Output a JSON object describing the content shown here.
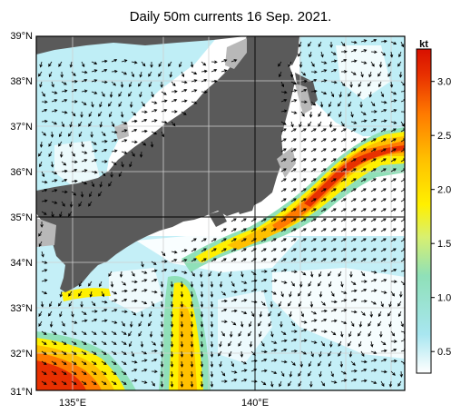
{
  "title": "Daily 50m currents 16 Sep. 2021.",
  "lat_labels": [
    "39°N",
    "38°N",
    "37°N",
    "36°N",
    "35°N",
    "34°N",
    "33°N",
    "32°N",
    "31°N"
  ],
  "lon_labels": [
    "135°E",
    "140°E"
  ],
  "colorbar": {
    "unit": "kt",
    "ticks": [
      "3.0",
      "2.5",
      "2.0",
      "1.5",
      "1.0",
      "0.5"
    ],
    "tick_values": [
      3.0,
      2.5,
      2.0,
      1.5,
      1.0,
      0.5
    ],
    "range": [
      0.3,
      3.3
    ],
    "colors": [
      "#ffffff",
      "#a8e6f0",
      "#8fe0b8",
      "#d8f070",
      "#fff000",
      "#ffc000",
      "#ff7a00",
      "#e83000",
      "#d81000"
    ]
  },
  "colors": {
    "land": "#5a5a5a",
    "sea": "#ffffff",
    "arrow": "#000000",
    "grid": "#cfcfcf"
  }
}
